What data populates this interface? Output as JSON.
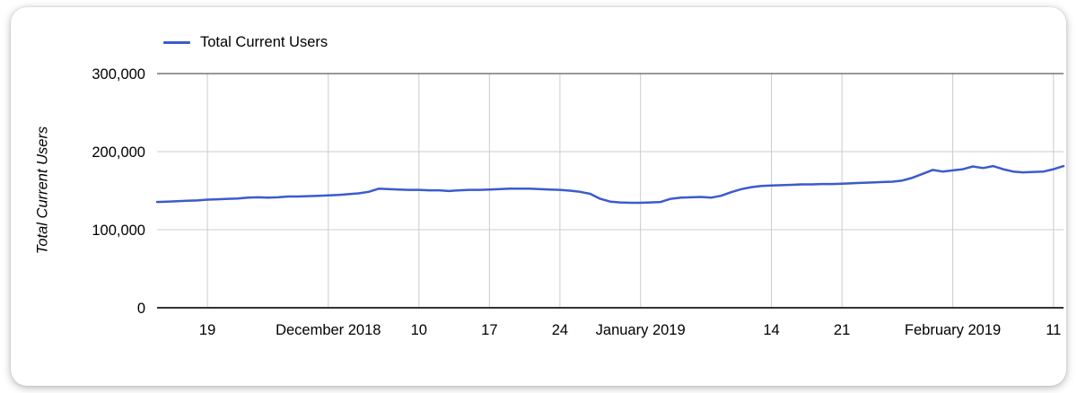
{
  "chart_data": {
    "type": "line",
    "title": "",
    "xlabel": "",
    "ylabel": "Total Current Users",
    "ylim": [
      0,
      300000
    ],
    "grid": true,
    "legend_position": "top-left",
    "y_ticks": [
      {
        "value": 0,
        "label": "0"
      },
      {
        "value": 100000,
        "label": "100,000"
      },
      {
        "value": 200000,
        "label": "200,000"
      },
      {
        "value": 300000,
        "label": "300,000"
      }
    ],
    "x_start_date": "2018-11-14",
    "x_end_date": "2019-02-12",
    "interval": "daily",
    "x_ticks": [
      {
        "day": 5,
        "label": "19"
      },
      {
        "day": 17,
        "label": "December 2018"
      },
      {
        "day": 26,
        "label": "10"
      },
      {
        "day": 33,
        "label": "17"
      },
      {
        "day": 40,
        "label": "24"
      },
      {
        "day": 48,
        "label": "January 2019"
      },
      {
        "day": 61,
        "label": "14"
      },
      {
        "day": 68,
        "label": "21"
      },
      {
        "day": 79,
        "label": "February 2019"
      },
      {
        "day": 89,
        "label": "11"
      }
    ],
    "colors": {
      "grid": "#cccccc",
      "axis": "#333333",
      "text": "#000000"
    },
    "series": [
      {
        "name": "Total Current Users",
        "color": "#3b5bce",
        "values": [
          135500,
          136000,
          136500,
          137000,
          137500,
          138500,
          139000,
          139500,
          140000,
          141000,
          141500,
          141000,
          141500,
          142500,
          142500,
          143000,
          143500,
          144000,
          144500,
          145500,
          146500,
          148500,
          152500,
          152000,
          151500,
          151000,
          151000,
          150500,
          150500,
          149500,
          150500,
          151000,
          151000,
          151500,
          152000,
          152500,
          152500,
          152500,
          152000,
          151500,
          151000,
          150000,
          148500,
          146000,
          139500,
          136000,
          135000,
          134500,
          134500,
          135000,
          135500,
          139500,
          141000,
          141500,
          142000,
          141000,
          143500,
          148000,
          152000,
          154500,
          156000,
          156500,
          157000,
          157500,
          158000,
          158000,
          158500,
          158500,
          159000,
          159500,
          160000,
          160500,
          161000,
          161500,
          163000,
          166500,
          171500,
          176500,
          174500,
          176000,
          177500,
          181000,
          179000,
          181500,
          177500,
          174500,
          173500,
          174000,
          174500,
          177500,
          181500
        ]
      }
    ]
  }
}
